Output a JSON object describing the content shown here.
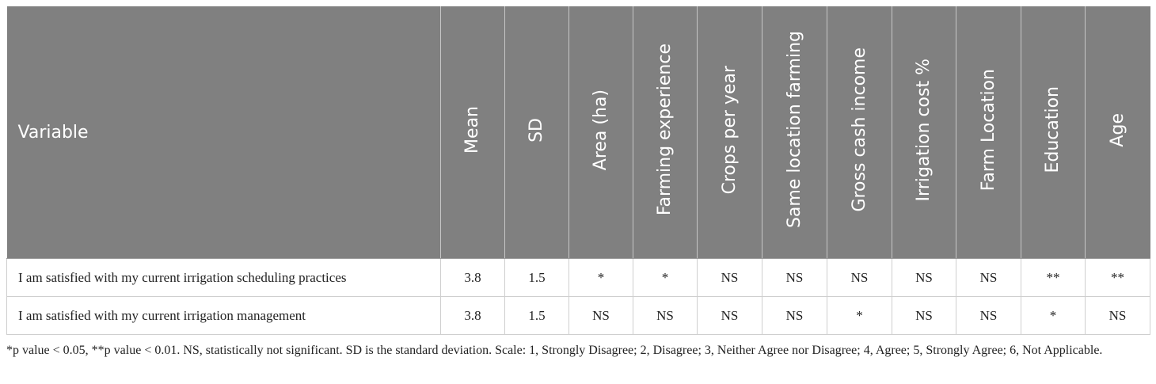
{
  "table": {
    "headers": [
      "Variable",
      "Mean",
      "SD",
      "Area (ha)",
      "Farming experience",
      "Crops per year",
      "Same location farming",
      "Gross cash income",
      "Irrigation cost %",
      "Farm Location",
      "Education",
      "Age"
    ],
    "rows": [
      [
        "I am satisfied with my current irrigation scheduling practices",
        "3.8",
        "1.5",
        "*",
        "*",
        "NS",
        "NS",
        "NS",
        "NS",
        "NS",
        "**",
        "**"
      ],
      [
        "I am satisfied with my current irrigation management",
        "3.8",
        "1.5",
        "NS",
        "NS",
        "NS",
        "NS",
        "*",
        "NS",
        "NS",
        "*",
        "NS"
      ]
    ]
  },
  "footnote": "*p value < 0.05, **p value < 0.01. NS, statistically not significant. SD is the standard deviation. Scale: 1, Strongly Disagree; 2, Disagree; 3, Neither Agree nor Disagree; 4, Agree; 5, Strongly Agree; 6, Not Applicable.",
  "colors": {
    "header_bg": "#808080",
    "header_text": "#ffffff",
    "border": "#cfcfcf"
  }
}
